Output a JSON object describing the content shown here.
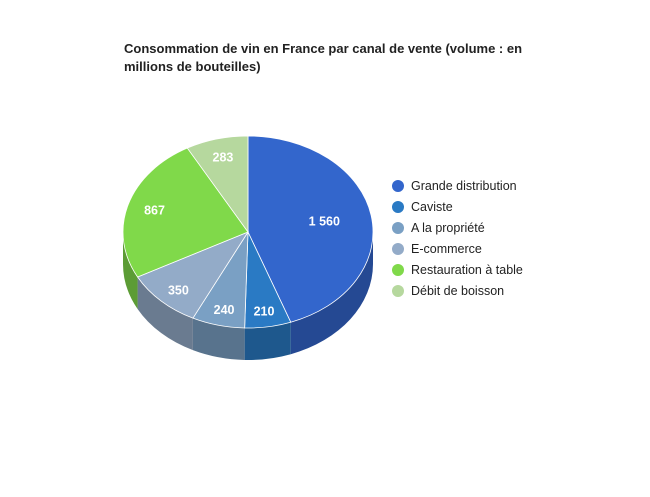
{
  "chart_data": {
    "type": "pie",
    "title": "Consommation de vin en France par canal de vente (volume : en millions de bouteilles)",
    "categories": [
      "Grande distribution",
      "Caviste",
      "A la propriété",
      "E-commerce",
      "Restauration à table",
      "Débit de boisson"
    ],
    "values": [
      1560,
      210,
      240,
      350,
      867,
      283
    ],
    "value_labels": [
      "1 560",
      "210",
      "240",
      "350",
      "867",
      "283"
    ],
    "colors": [
      "#3366cc",
      "#2a7ac4",
      "#7aa0c4",
      "#93abc8",
      "#80d94a",
      "#b6d89e"
    ],
    "style": "3d",
    "legend_position": "right"
  }
}
